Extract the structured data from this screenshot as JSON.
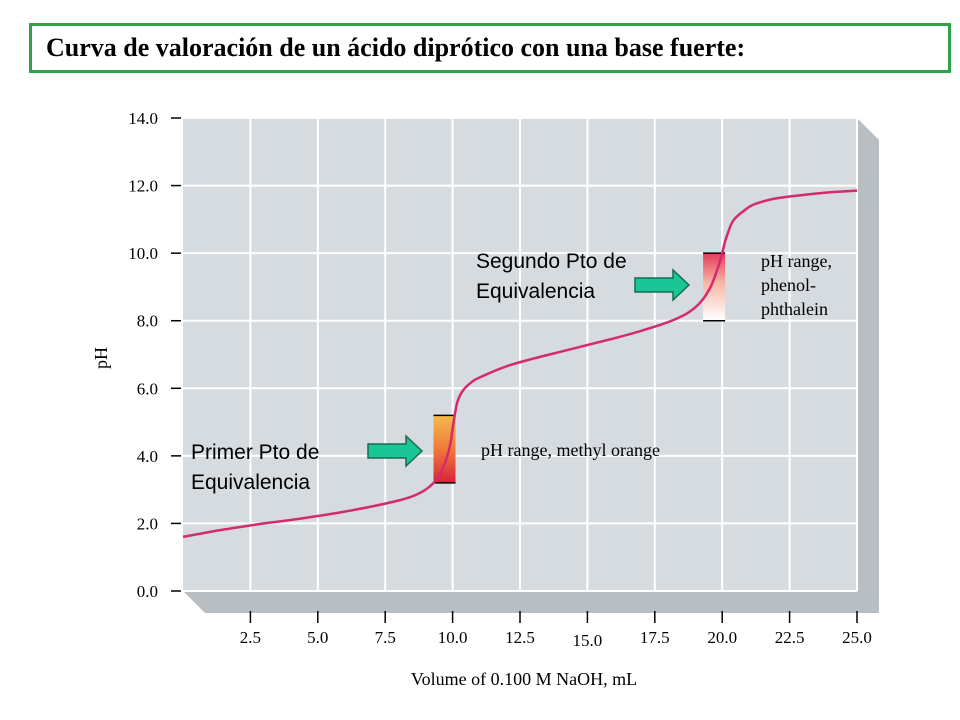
{
  "title": "Curva de valoración de un ácido diprótico con una base fuerte:",
  "chart_data": {
    "type": "line",
    "xlabel": "Volume of 0.100 M NaOH, mL",
    "ylabel": "pH",
    "xlim": [
      0,
      25
    ],
    "ylim": [
      0,
      14
    ],
    "x_ticks": [
      "2.5",
      "5.0",
      "7.5",
      "10.0",
      "12.5",
      "15.0",
      "17.5",
      "20.0",
      "22.5",
      "25.0"
    ],
    "y_ticks": [
      "0.0",
      "2.0",
      "4.0",
      "6.0",
      "8.0",
      "10.0",
      "12.0",
      "14.0"
    ],
    "series": [
      {
        "name": "titration curve",
        "color": "#d42a6e",
        "x": [
          0,
          1,
          2,
          3,
          4,
          5,
          6,
          7,
          8,
          8.5,
          9,
          9.4,
          9.7,
          9.9,
          10.0,
          10.1,
          10.2,
          10.4,
          10.7,
          11,
          12,
          13,
          14,
          15,
          16,
          17,
          18,
          18.7,
          19.2,
          19.6,
          19.85,
          20.0,
          20.15,
          20.4,
          20.8,
          21.2,
          22,
          23,
          24,
          25
        ],
        "y": [
          1.6,
          1.75,
          1.88,
          2.0,
          2.1,
          2.22,
          2.35,
          2.5,
          2.68,
          2.8,
          3.0,
          3.3,
          3.75,
          4.3,
          4.8,
          5.3,
          5.65,
          5.95,
          6.18,
          6.32,
          6.65,
          6.88,
          7.08,
          7.28,
          7.48,
          7.7,
          7.96,
          8.22,
          8.55,
          9.05,
          9.6,
          10.0,
          10.45,
          10.95,
          11.25,
          11.45,
          11.62,
          11.72,
          11.8,
          11.85
        ]
      }
    ],
    "indicator_bands": [
      {
        "name": "methyl orange",
        "x": 9.7,
        "ph_range": [
          3.2,
          5.2
        ],
        "colors": [
          "#f5b94b",
          "#f07a3a",
          "#d8223a"
        ]
      },
      {
        "name": "phenolphthalein",
        "x": 19.7,
        "ph_range": [
          8.0,
          10.0
        ],
        "colors": [
          "#ffffff",
          "#f7b9a8",
          "#e23a5a"
        ]
      }
    ],
    "annotations": {
      "first_point_line1": "Primer Pto de",
      "first_point_line2": "Equivalencia",
      "second_point_line1": "Segundo Pto de",
      "second_point_line2": "Equivalencia",
      "methyl_orange_label": "pH range, methyl orange",
      "phenol_line1": "pH range,",
      "phenol_line2": "phenol-",
      "phenol_line3": "phthalein"
    },
    "colors": {
      "plot_bg": "#d6dbe0",
      "grid": "#ffffff",
      "side_face": "#b9bec3",
      "arrow_fill": "#19c796",
      "arrow_stroke": "#1a6b50"
    }
  }
}
